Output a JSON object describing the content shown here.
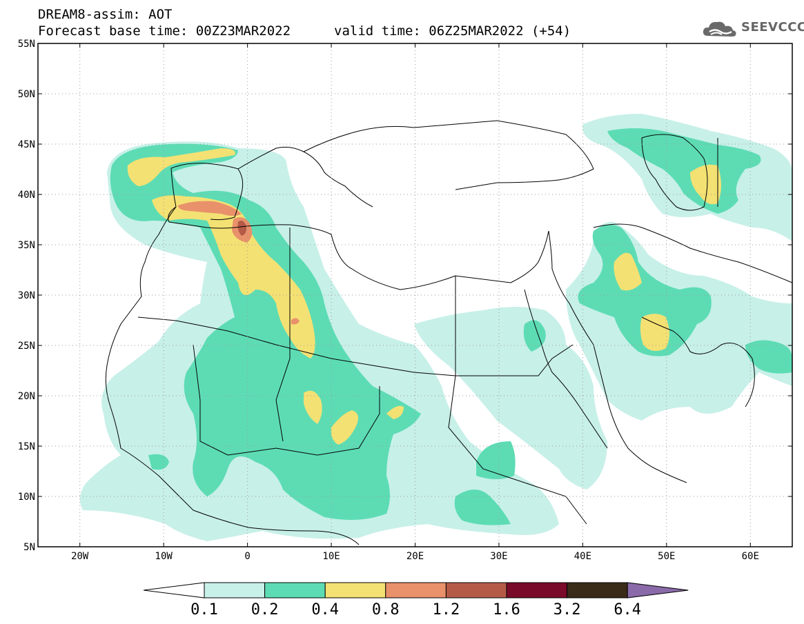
{
  "header": {
    "model_line": "DREAM8-assim: AOT",
    "base_time": "Forecast base time: 00Z23MAR2022",
    "valid_time": "valid time: 06Z25MAR2022 (+54)"
  },
  "logo": {
    "text": "SEEVCCC",
    "icon": "cloud-icon"
  },
  "map": {
    "lat_labels": [
      "55N",
      "50N",
      "45N",
      "40N",
      "35N",
      "30N",
      "25N",
      "20N",
      "15N",
      "10N",
      "5N"
    ],
    "lon_labels": [
      "20W",
      "10W",
      "0",
      "10E",
      "20E",
      "30E",
      "40E",
      "50E",
      "60E"
    ],
    "lat_range": [
      5,
      55
    ],
    "lon_range": [
      -25,
      65
    ],
    "grid": "dotted"
  },
  "colorbar": {
    "labels": [
      "0.1",
      "0.2",
      "0.4",
      "0.8",
      "1.2",
      "1.6",
      "3.2",
      "6.4"
    ],
    "colors": [
      "#ffffff",
      "#c7f0e8",
      "#5ddcb4",
      "#f4e173",
      "#e8916b",
      "#b45b47",
      "#7a0a2a",
      "#3a2a18",
      "#8a6aa8"
    ]
  }
}
